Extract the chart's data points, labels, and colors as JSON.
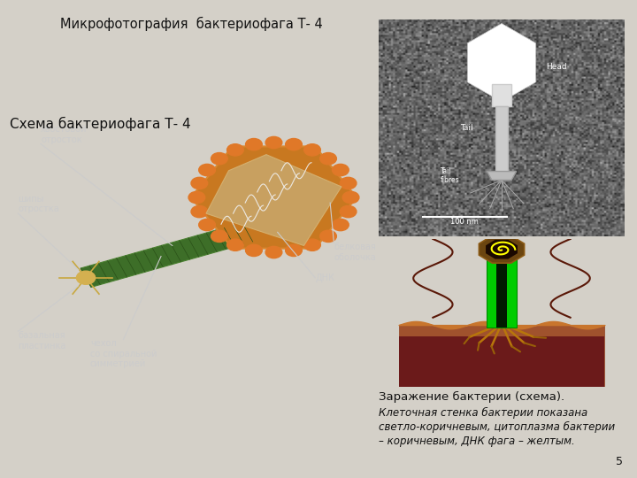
{
  "bg_color": "#d4d0c8",
  "title_micro": "Микрофотография  бактериофага Т- 4",
  "title_schema": "Схема бактериофага Т- 4",
  "caption_line1": "Заражение бактерии (схема).",
  "caption_line2": "Клеточная стенка бактерии показана",
  "caption_line3": "светло-коричневым, цитоплазма бактерии",
  "caption_line4": "– коричневым, ДНК фага – желтым.",
  "page_number": "5",
  "cell_wall_color": "#b5651d",
  "cytoplasm_color": "#7a2020",
  "tail_green": "#00dd00",
  "tail_dark": "#003300",
  "head_outer": "#8b6410",
  "head_inner": "#2a1000",
  "dna_yellow": "#ffff00",
  "fiber_color": "#b8860b",
  "label_color": "#cccccc",
  "micro_bg": "#606060"
}
